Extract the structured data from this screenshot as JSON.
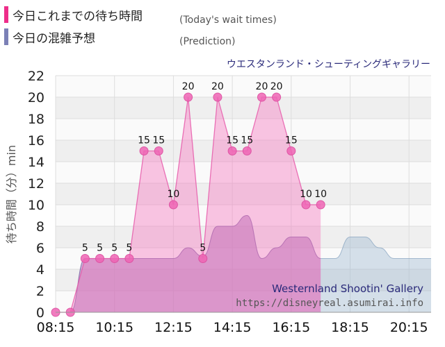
{
  "legend": {
    "today_label": "今日これまでの待ち時間",
    "today_note": "(Today's wait times)",
    "today_color": "#ee2d8a",
    "prediction_label": "今日の混雑予想",
    "prediction_note": "(Prediction)",
    "prediction_color": "#7b80b6"
  },
  "attraction_name": "ウエスタンランド・シューティングギャラリー",
  "watermark": {
    "title": "Westernland Shootin' Gallery",
    "url": "https://disneyreal.asumirai.info"
  },
  "chart_data": {
    "type": "area",
    "ylabel": "待ち時間（分）min",
    "ylim": [
      0,
      22
    ],
    "yticks": [
      0,
      2,
      4,
      6,
      8,
      10,
      12,
      14,
      16,
      18,
      20,
      22
    ],
    "xlim": [
      "08:15",
      "21:00"
    ],
    "xticks": [
      "08:15",
      "10:15",
      "12:15",
      "14:15",
      "16:15",
      "18:15",
      "20:15"
    ],
    "series": [
      {
        "name": "(Today's wait times)",
        "x": [
          "08:15",
          "08:45",
          "09:15",
          "09:45",
          "10:15",
          "10:45",
          "11:15",
          "11:45",
          "12:15",
          "12:45",
          "13:15",
          "13:45",
          "14:15",
          "14:45",
          "15:15",
          "15:45",
          "16:15",
          "16:45",
          "17:15"
        ],
        "values": [
          0,
          0,
          5,
          5,
          5,
          5,
          15,
          15,
          10,
          20,
          5,
          20,
          15,
          15,
          20,
          20,
          15,
          10,
          10
        ]
      },
      {
        "name": "(Prediction)",
        "x": [
          "08:15",
          "08:45",
          "09:15",
          "09:45",
          "10:15",
          "10:45",
          "11:15",
          "11:45",
          "12:15",
          "12:45",
          "13:15",
          "13:45",
          "14:15",
          "14:45",
          "15:15",
          "15:45",
          "16:15",
          "16:45",
          "17:15",
          "17:45",
          "18:15",
          "18:45",
          "19:15",
          "19:45",
          "20:15",
          "20:45",
          "21:00"
        ],
        "values": [
          0,
          0,
          5,
          5,
          5,
          5,
          5,
          5,
          5,
          6,
          5.2,
          8,
          8,
          9,
          5,
          6,
          7,
          7,
          5,
          5,
          7,
          7,
          6,
          5,
          5,
          5,
          5
        ]
      }
    ]
  }
}
